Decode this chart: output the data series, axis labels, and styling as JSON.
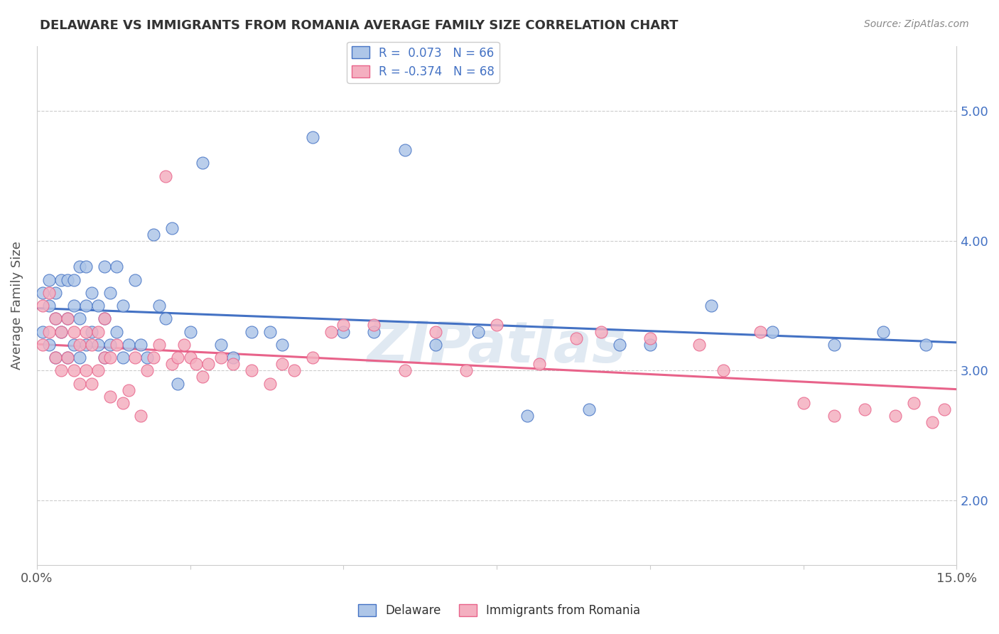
{
  "title": "DELAWARE VS IMMIGRANTS FROM ROMANIA AVERAGE FAMILY SIZE CORRELATION CHART",
  "source": "Source: ZipAtlas.com",
  "ylabel": "Average Family Size",
  "watermark": "ZIPatlas",
  "xlim": [
    0.0,
    0.15
  ],
  "ylim": [
    1.5,
    5.5
  ],
  "yticks": [
    2.0,
    3.0,
    4.0,
    5.0
  ],
  "xticks": [
    0.0,
    0.025,
    0.05,
    0.075,
    0.1,
    0.125,
    0.15
  ],
  "delaware_color": "#aec6e8",
  "romania_color": "#f4afc0",
  "delaware_line_color": "#4472c4",
  "romania_line_color": "#e8638a",
  "delaware_R": 0.073,
  "romania_R": -0.374,
  "delaware_N": 66,
  "romania_N": 68,
  "delaware_x": [
    0.001,
    0.001,
    0.002,
    0.002,
    0.002,
    0.003,
    0.003,
    0.003,
    0.004,
    0.004,
    0.005,
    0.005,
    0.005,
    0.006,
    0.006,
    0.006,
    0.007,
    0.007,
    0.007,
    0.008,
    0.008,
    0.008,
    0.009,
    0.009,
    0.01,
    0.01,
    0.011,
    0.011,
    0.011,
    0.012,
    0.012,
    0.013,
    0.013,
    0.014,
    0.014,
    0.015,
    0.016,
    0.017,
    0.018,
    0.019,
    0.02,
    0.021,
    0.022,
    0.023,
    0.025,
    0.027,
    0.03,
    0.032,
    0.035,
    0.038,
    0.04,
    0.045,
    0.05,
    0.055,
    0.06,
    0.065,
    0.072,
    0.08,
    0.09,
    0.095,
    0.1,
    0.11,
    0.12,
    0.13,
    0.138,
    0.145
  ],
  "delaware_y": [
    3.3,
    3.6,
    3.2,
    3.5,
    3.7,
    3.1,
    3.4,
    3.6,
    3.3,
    3.7,
    3.1,
    3.4,
    3.7,
    3.2,
    3.5,
    3.7,
    3.1,
    3.4,
    3.8,
    3.2,
    3.5,
    3.8,
    3.3,
    3.6,
    3.2,
    3.5,
    3.1,
    3.4,
    3.8,
    3.2,
    3.6,
    3.3,
    3.8,
    3.1,
    3.5,
    3.2,
    3.7,
    3.2,
    3.1,
    4.05,
    3.5,
    3.4,
    4.1,
    2.9,
    3.3,
    4.6,
    3.2,
    3.1,
    3.3,
    3.3,
    3.2,
    4.8,
    3.3,
    3.3,
    4.7,
    3.2,
    3.3,
    2.65,
    2.7,
    3.2,
    3.2,
    3.5,
    3.3,
    3.2,
    3.3,
    3.2
  ],
  "romania_x": [
    0.001,
    0.001,
    0.002,
    0.002,
    0.003,
    0.003,
    0.004,
    0.004,
    0.005,
    0.005,
    0.006,
    0.006,
    0.007,
    0.007,
    0.008,
    0.008,
    0.009,
    0.009,
    0.01,
    0.01,
    0.011,
    0.011,
    0.012,
    0.012,
    0.013,
    0.014,
    0.015,
    0.016,
    0.017,
    0.018,
    0.019,
    0.02,
    0.021,
    0.022,
    0.023,
    0.024,
    0.025,
    0.026,
    0.027,
    0.028,
    0.03,
    0.032,
    0.035,
    0.038,
    0.04,
    0.042,
    0.045,
    0.048,
    0.05,
    0.055,
    0.06,
    0.065,
    0.07,
    0.075,
    0.082,
    0.088,
    0.092,
    0.1,
    0.108,
    0.112,
    0.118,
    0.125,
    0.13,
    0.135,
    0.14,
    0.143,
    0.146,
    0.148
  ],
  "romania_y": [
    3.2,
    3.5,
    3.3,
    3.6,
    3.1,
    3.4,
    3.0,
    3.3,
    3.1,
    3.4,
    3.0,
    3.3,
    2.9,
    3.2,
    3.0,
    3.3,
    2.9,
    3.2,
    3.0,
    3.3,
    3.1,
    3.4,
    2.8,
    3.1,
    3.2,
    2.75,
    2.85,
    3.1,
    2.65,
    3.0,
    3.1,
    3.2,
    4.5,
    3.05,
    3.1,
    3.2,
    3.1,
    3.05,
    2.95,
    3.05,
    3.1,
    3.05,
    3.0,
    2.9,
    3.05,
    3.0,
    3.1,
    3.3,
    3.35,
    3.35,
    3.0,
    3.3,
    3.0,
    3.35,
    3.05,
    3.25,
    3.3,
    3.25,
    3.2,
    3.0,
    3.3,
    2.75,
    2.65,
    2.7,
    2.65,
    2.75,
    2.6,
    2.7
  ]
}
